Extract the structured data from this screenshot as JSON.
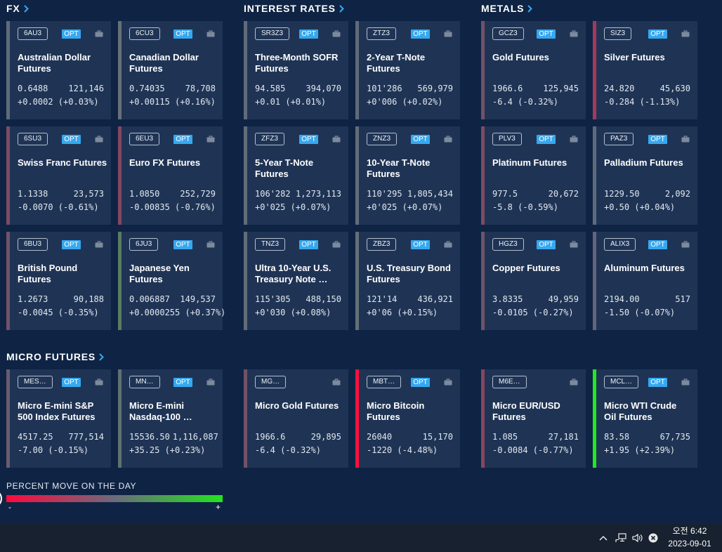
{
  "sections": {
    "fx": {
      "title": "FX",
      "cards": [
        {
          "ticker": "6AU3",
          "opt_label": "OPT",
          "name": "Australian Dollar\nFutures",
          "last": "0.6488",
          "volume": "121,146",
          "change": "+0.0002 (+0.03%)",
          "stripe_color": "#5f6b7a"
        },
        {
          "ticker": "6CU3",
          "opt_label": "OPT",
          "name": "Canadian Dollar\nFutures",
          "last": "0.74035",
          "volume": "78,708",
          "change": "+0.00115 (+0.16%)",
          "stripe_color": "#647178"
        },
        {
          "ticker": "6SU3",
          "opt_label": "OPT",
          "name": "Swiss Franc Futures",
          "last": "1.1338",
          "volume": "23,573",
          "change": "-0.0070 (-0.61%)",
          "stripe_color": "#7d4b63"
        },
        {
          "ticker": "6EU3",
          "opt_label": "OPT",
          "name": "Euro FX Futures",
          "last": "1.0850",
          "volume": "252,729",
          "change": "-0.00835 (-0.76%)",
          "stripe_color": "#86465f"
        },
        {
          "ticker": "6BU3",
          "opt_label": "OPT",
          "name": "British Pound\nFutures",
          "last": "1.2673",
          "volume": "90,188",
          "change": "-0.0045 (-0.35%)",
          "stripe_color": "#725268"
        },
        {
          "ticker": "6JU3",
          "opt_label": "OPT",
          "name": "Japanese Yen\nFutures",
          "last": "0.006887",
          "volume": "149,537",
          "change": "+0.0000255 (+0.37%)",
          "stripe_color": "#5a7c63"
        }
      ]
    },
    "interest_rates": {
      "title": "INTEREST RATES",
      "cards": [
        {
          "ticker": "SR3Z3",
          "opt_label": "OPT",
          "name": "Three-Month SOFR\nFutures",
          "last": "94.585",
          "volume": "394,070",
          "change": "+0.01 (+0.01%)",
          "stripe_color": "#606a79"
        },
        {
          "ticker": "ZTZ3",
          "opt_label": "OPT",
          "name": "2-Year T-Note\nFutures",
          "last": "101'286",
          "volume": "569,979",
          "change": "+0'006 (+0.02%)",
          "stripe_color": "#606b79"
        },
        {
          "ticker": "ZFZ3",
          "opt_label": "OPT",
          "name": "5-Year T-Note\nFutures",
          "last": "106'282",
          "volume": "1,273,113",
          "change": "+0'025 (+0.07%)",
          "stripe_color": "#616d78"
        },
        {
          "ticker": "ZNZ3",
          "opt_label": "OPT",
          "name": "10-Year T-Note\nFutures",
          "last": "110'295",
          "volume": "1,805,434",
          "change": "+0'025 (+0.07%)",
          "stripe_color": "#616d78"
        },
        {
          "ticker": "TNZ3",
          "opt_label": "OPT",
          "name": "Ultra 10-Year U.S.\nTreasury Note …",
          "last": "115'305",
          "volume": "488,150",
          "change": "+0'030 (+0.08%)",
          "stripe_color": "#616d78"
        },
        {
          "ticker": "ZBZ3",
          "opt_label": "OPT",
          "name": "U.S. Treasury Bond\nFutures",
          "last": "121'14",
          "volume": "436,921",
          "change": "+0'06 (+0.15%)",
          "stripe_color": "#627077"
        }
      ]
    },
    "metals": {
      "title": "METALS",
      "cards": [
        {
          "ticker": "GCZ3",
          "opt_label": "OPT",
          "name": "Gold Futures",
          "last": "1966.6",
          "volume": "125,945",
          "change": "-6.4 (-0.32%)",
          "stripe_color": "#735167"
        },
        {
          "ticker": "SIZ3",
          "opt_label": "OPT",
          "name": "Silver Futures",
          "last": "24.820",
          "volume": "45,630",
          "change": "-0.284 (-1.13%)",
          "stripe_color": "#a6395a"
        },
        {
          "ticker": "PLV3",
          "opt_label": "OPT",
          "name": "Platinum Futures",
          "last": "977.5",
          "volume": "20,672",
          "change": "-5.8 (-0.59%)",
          "stripe_color": "#7d4b63"
        },
        {
          "ticker": "PAZ3",
          "opt_label": "OPT",
          "name": "Palladium Futures",
          "last": "1229.50",
          "volume": "2,092",
          "change": "+0.50 (+0.04%)",
          "stripe_color": "#606b79"
        },
        {
          "ticker": "HGZ3",
          "opt_label": "OPT",
          "name": "Copper Futures",
          "last": "3.8335",
          "volume": "49,959",
          "change": "-0.0105 (-0.27%)",
          "stripe_color": "#6f5369"
        },
        {
          "ticker": "ALIX3",
          "opt_label": "OPT",
          "name": "Aluminum Futures",
          "last": "2194.00",
          "volume": "517",
          "change": "-1.50 (-0.07%)",
          "stripe_color": "#656478"
        }
      ]
    },
    "micro_futures": {
      "title": "MICRO FUTURES",
      "cards": [
        {
          "ticker": "MES…",
          "opt_label": "OPT",
          "name": "Micro E-mini S&P\n500 Index Futures",
          "last": "4517.25",
          "volume": "777,514",
          "change": "-7.00 (-0.15%)",
          "stripe_color": "#6a5a70"
        },
        {
          "ticker": "MN…",
          "opt_label": "OPT",
          "name": "Micro E-mini\nNasdaq-100 …",
          "last": "15536.50",
          "volume": "1,116,087",
          "change": "+35.25 (+0.23%)",
          "stripe_color": "#5f7272"
        },
        {
          "ticker": "MG…",
          "name": "Micro Gold Futures",
          "last": "1966.6",
          "volume": "29,895",
          "change": "-6.4 (-0.32%)",
          "stripe_color": "#735167"
        },
        {
          "ticker": "MBT…",
          "opt_label": "OPT",
          "name": "Micro Bitcoin\nFutures",
          "last": "26040",
          "volume": "15,170",
          "change": "-1220 (-4.48%)",
          "stripe_color": "#ff0f3c"
        },
        {
          "ticker": "M6E…",
          "name": "Micro EUR/USD\nFutures",
          "last": "1.085",
          "volume": "27,181",
          "change": "-0.0084 (-0.77%)",
          "stripe_color": "#87465f"
        },
        {
          "ticker": "MCL…",
          "opt_label": "OPT",
          "name": "Micro WTI Crude\nOil Futures",
          "last": "83.58",
          "volume": "67,735",
          "change": "+1.95 (+2.39%)",
          "stripe_color": "#22e822"
        }
      ]
    }
  },
  "legend": {
    "title": "PERCENT MOVE ON THE DAY",
    "minus": "-",
    "plus": "+",
    "colors": {
      "negative": "#ff0a3c",
      "neutral": "#6c6a7c",
      "positive": "#22e41c"
    }
  },
  "taskbar": {
    "time": "오전 6:42",
    "date": "2023-09-01",
    "tray_icons": [
      "chevron-up-icon",
      "network-icon",
      "speaker-icon",
      "close-circle-icon"
    ]
  },
  "colors": {
    "background": "#0f2444",
    "card": "#1f3455",
    "accent": "#39a9f2",
    "options_badge": "#36a8f0"
  }
}
